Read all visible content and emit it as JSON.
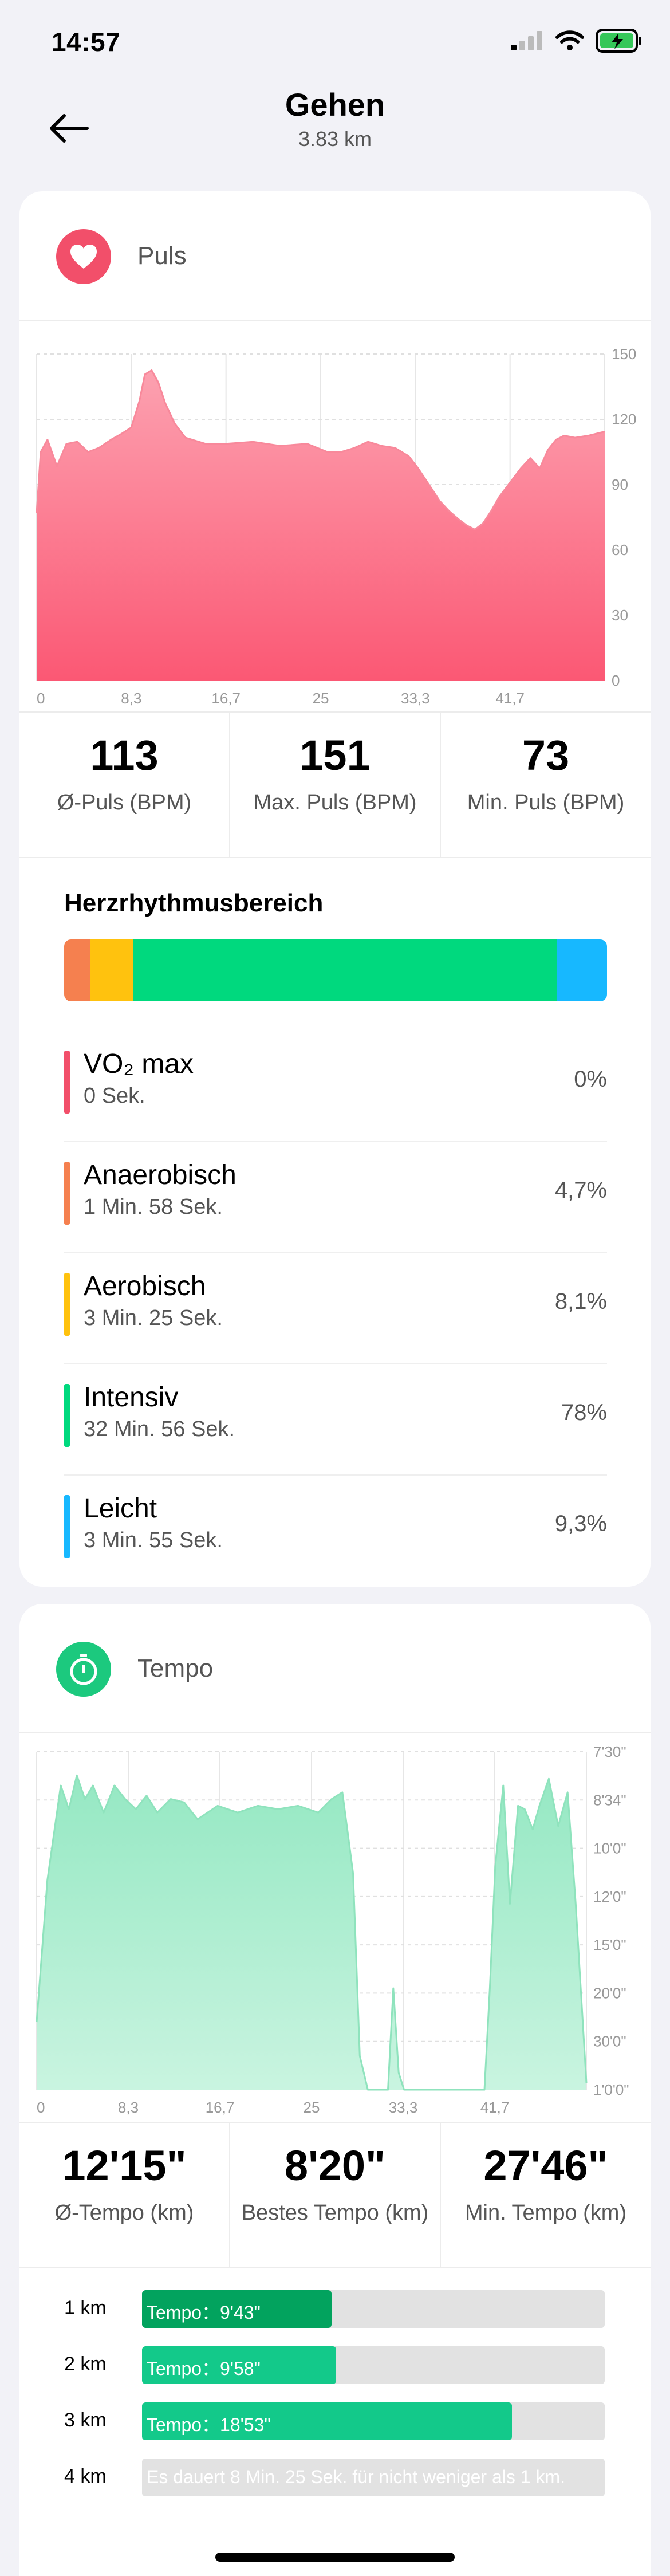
{
  "status_bar": {
    "time": "14:57"
  },
  "nav": {
    "title": "Gehen",
    "subtitle": "3.83 km"
  },
  "pulse": {
    "title": "Puls",
    "accent": "#f24f6a",
    "stats": [
      {
        "value": "113",
        "label": "Ø-Puls (BPM)"
      },
      {
        "value": "151",
        "label": "Max. Puls (BPM)"
      },
      {
        "value": "73",
        "label": "Min. Puls (BPM)"
      }
    ],
    "zones_heading": "Herzrhythmusbereich",
    "zones": [
      {
        "name": "VO₂ max",
        "time": "0 Sek.",
        "pct": "0%",
        "share": 0,
        "color": "#f24f6a"
      },
      {
        "name": "Anaerobisch",
        "time": "1 Min. 58 Sek.",
        "pct": "4,7%",
        "share": 4.7,
        "color": "#f5804f"
      },
      {
        "name": "Aerobisch",
        "time": "3 Min. 25 Sek.",
        "pct": "8,1%",
        "share": 8.1,
        "color": "#ffc20e"
      },
      {
        "name": "Intensiv",
        "time": "32 Min. 56 Sek.",
        "pct": "78%",
        "share": 78,
        "color": "#00d97e"
      },
      {
        "name": "Leicht",
        "time": "3 Min. 55 Sek.",
        "pct": "9,3%",
        "share": 9.3,
        "color": "#17b8ff"
      }
    ]
  },
  "tempo": {
    "title": "Tempo",
    "accent": "#1cc97e",
    "stats": [
      {
        "value": "12'15\"",
        "label": "Ø-Tempo (km)"
      },
      {
        "value": "8'20\"",
        "label": "Bestes Tempo (km)"
      },
      {
        "value": "27'46\"",
        "label": "Min. Tempo (km)"
      }
    ],
    "km_splits": [
      {
        "label": "1 km",
        "text": "Tempo：9'43\"",
        "fill": 0.41,
        "color": "#02a35e"
      },
      {
        "label": "2 km",
        "text": "Tempo：9'58\"",
        "fill": 0.42,
        "color": "#13c98a"
      },
      {
        "label": "3 km",
        "text": "Tempo：18'53\"",
        "fill": 0.8,
        "color": "#13c98a"
      },
      {
        "label": "4 km",
        "text": "Es dauert 8 Min. 25 Sek. für nicht weniger als 1 km.",
        "fill": 0,
        "color": "#13c98a"
      }
    ]
  },
  "chart_data": [
    {
      "type": "area",
      "title": "Puls",
      "x_ticks": [
        "0",
        "8,3",
        "16,7",
        "25",
        "33,3",
        "41,7"
      ],
      "y_ticks": [
        "150",
        "120",
        "90",
        "60",
        "30",
        "0"
      ],
      "ylim": [
        0,
        160
      ],
      "xlim": [
        0,
        42
      ],
      "grid": true,
      "series": [
        {
          "x": [
            0,
            0.3,
            0.8,
            1.5,
            2.2,
            3.0,
            3.8,
            4.6,
            5.5,
            6.3,
            7.0,
            7.6,
            8.0,
            8.5,
            9.0,
            9.5,
            10.2,
            11.0,
            12.5,
            14.0,
            16.0,
            18.0,
            20.0,
            21.5,
            22.5,
            23.5,
            24.5,
            25.5,
            26.5,
            27.5,
            28.2,
            29.0,
            29.8,
            30.5,
            31.2,
            31.8,
            32.4,
            33.0,
            33.6,
            34.2,
            35.0,
            35.8,
            36.5,
            37.2,
            37.8,
            38.4,
            39.0,
            39.8,
            40.8,
            42.0
          ],
          "values": [
            82,
            112,
            118,
            105,
            116,
            117,
            112,
            114,
            118,
            121,
            124,
            137,
            150,
            152,
            146,
            136,
            126,
            119,
            116,
            116,
            117,
            115,
            116,
            112,
            112,
            114,
            117,
            115,
            114,
            110,
            104,
            96,
            88,
            83,
            79,
            76,
            74,
            77,
            83,
            90,
            97,
            104,
            109,
            104,
            113,
            118,
            120,
            119,
            120,
            122
          ]
        }
      ]
    },
    {
      "type": "area",
      "title": "Tempo",
      "x_ticks": [
        "0",
        "8,3",
        "16,7",
        "25",
        "33,3",
        "41,7"
      ],
      "y_ticks": [
        "7'30\"",
        "8'34\"",
        "10'0\"",
        "12'0\"",
        "15'0\"",
        "20'0\"",
        "30'0\"",
        "1'0'0\""
      ],
      "xlim": [
        0,
        41
      ],
      "grid": true,
      "series": [
        {
          "x": [
            0,
            0.8,
            1.8,
            2.4,
            3.0,
            3.6,
            4.2,
            5.0,
            5.8,
            6.6,
            7.4,
            8.2,
            9.0,
            10.0,
            11.0,
            12.0,
            13.5,
            15.0,
            16.5,
            18.0,
            19.5,
            21.0,
            22.0,
            22.8,
            23.6,
            24.1,
            24.7,
            25.4,
            26.2,
            26.6,
            27.0,
            27.4,
            27.9,
            28.3,
            28.9,
            29.4,
            30.0,
            30.5,
            31.0,
            31.5,
            32.0,
            32.5,
            33.0,
            33.4,
            33.8,
            34.2,
            34.8,
            35.3,
            35.9,
            36.4,
            37.0,
            37.5,
            38.2,
            38.9,
            39.6,
            40.2,
            41.0
          ],
          "values": [
            0.2,
            0.62,
            0.9,
            0.83,
            0.93,
            0.86,
            0.9,
            0.82,
            0.9,
            0.86,
            0.83,
            0.87,
            0.82,
            0.86,
            0.85,
            0.8,
            0.84,
            0.82,
            0.84,
            0.83,
            0.84,
            0.82,
            0.86,
            0.88,
            0.64,
            0.1,
            0.0,
            0.0,
            0.0,
            0.3,
            0.05,
            0.0,
            0.0,
            0.0,
            0.0,
            0.0,
            0.0,
            0.0,
            0.0,
            0.0,
            0.0,
            0.0,
            0.0,
            0.0,
            0.3,
            0.66,
            0.9,
            0.55,
            0.84,
            0.83,
            0.77,
            0.84,
            0.92,
            0.78,
            0.88,
            0.55,
            0.02
          ]
        }
      ]
    }
  ]
}
